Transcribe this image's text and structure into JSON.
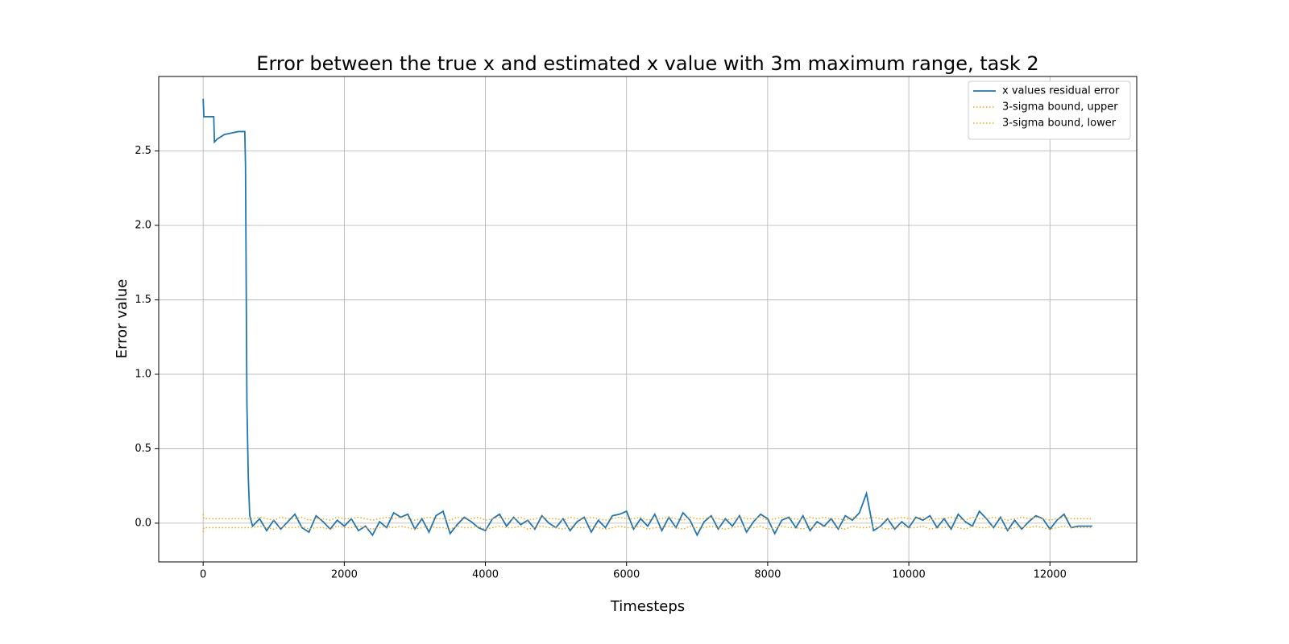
{
  "chart_data": {
    "type": "line",
    "title": "Error between the true x and estimated x value with 3m maximum range, task 2",
    "x_label": "Timesteps",
    "y_label": "Error value",
    "xlim": [
      -630,
      13230
    ],
    "ylim": [
      -0.26,
      3.0
    ],
    "xticks": [
      0,
      2000,
      4000,
      6000,
      8000,
      10000,
      12000
    ],
    "yticks": [
      {
        "value": 0,
        "label": "0.0"
      },
      {
        "value": 0.5,
        "label": "0.5"
      },
      {
        "value": 1,
        "label": "1.0"
      },
      {
        "value": 1.5,
        "label": "1.5"
      },
      {
        "value": 2,
        "label": "2.0"
      },
      {
        "value": 2.5,
        "label": "2.5"
      }
    ],
    "grid": true,
    "legend": "upper right",
    "x": [
      0,
      10,
      150,
      160,
      200,
      300,
      400,
      500,
      590,
      600,
      620,
      640,
      660,
      700,
      800,
      900,
      1000,
      1100,
      1200,
      1300,
      1400,
      1500,
      1600,
      1700,
      1800,
      1900,
      2000,
      2100,
      2200,
      2300,
      2400,
      2500,
      2600,
      2700,
      2800,
      2900,
      3000,
      3100,
      3200,
      3300,
      3400,
      3500,
      3600,
      3700,
      3800,
      3900,
      4000,
      4100,
      4200,
      4300,
      4400,
      4500,
      4600,
      4700,
      4800,
      4900,
      5000,
      5100,
      5200,
      5300,
      5400,
      5500,
      5600,
      5700,
      5800,
      5900,
      6000,
      6100,
      6200,
      6300,
      6400,
      6500,
      6600,
      6700,
      6800,
      6900,
      7000,
      7100,
      7200,
      7300,
      7400,
      7500,
      7600,
      7700,
      7800,
      7900,
      8000,
      8100,
      8200,
      8300,
      8400,
      8500,
      8600,
      8700,
      8800,
      8900,
      9000,
      9100,
      9200,
      9300,
      9400,
      9500,
      9600,
      9700,
      9800,
      9900,
      10000,
      10100,
      10200,
      10300,
      10400,
      10500,
      10600,
      10700,
      10800,
      10900,
      11000,
      11100,
      11200,
      11300,
      11400,
      11500,
      11600,
      11700,
      11800,
      11900,
      12000,
      12100,
      12200,
      12300,
      12400,
      12500,
      12600
    ],
    "series": [
      {
        "name": "x values residual error",
        "color": "#1f77b4",
        "style": "solid",
        "values": [
          2.85,
          2.73,
          2.73,
          2.56,
          2.58,
          2.61,
          2.62,
          2.63,
          2.63,
          2.4,
          0.8,
          0.3,
          0.05,
          -0.02,
          0.03,
          -0.05,
          0.02,
          -0.04,
          0.01,
          0.06,
          -0.03,
          -0.06,
          0.05,
          0.01,
          -0.04,
          0.02,
          -0.02,
          0.03,
          -0.05,
          -0.02,
          -0.08,
          0.01,
          -0.03,
          0.07,
          0.04,
          0.06,
          -0.04,
          0.03,
          -0.06,
          0.05,
          0.08,
          -0.07,
          -0.01,
          0.04,
          0.01,
          -0.03,
          -0.05,
          0.03,
          0.06,
          -0.02,
          0.04,
          -0.01,
          0.02,
          -0.04,
          0.05,
          0.0,
          -0.03,
          0.03,
          -0.05,
          0.01,
          0.04,
          -0.06,
          0.02,
          -0.03,
          0.05,
          0.06,
          0.08,
          -0.04,
          0.03,
          -0.02,
          0.06,
          -0.05,
          0.04,
          -0.03,
          0.07,
          0.02,
          -0.08,
          0.01,
          0.05,
          -0.04,
          0.03,
          -0.02,
          0.05,
          -0.06,
          0.01,
          0.06,
          0.03,
          -0.07,
          0.02,
          0.04,
          -0.03,
          0.05,
          -0.05,
          0.01,
          -0.02,
          0.03,
          -0.04,
          0.05,
          0.02,
          0.07,
          0.2,
          -0.05,
          -0.02,
          0.03,
          -0.04,
          0.01,
          -0.03,
          0.04,
          0.02,
          0.05,
          -0.03,
          0.03,
          -0.04,
          0.06,
          0.01,
          -0.02,
          0.08,
          0.03,
          -0.03,
          0.04,
          -0.05,
          0.02,
          -0.04,
          0.01,
          0.05,
          0.03,
          -0.04,
          0.02,
          0.06,
          -0.03,
          -0.02,
          -0.02,
          -0.02
        ]
      },
      {
        "name": "3-sigma bound, upper",
        "color": "#ffa500",
        "style": "dotted",
        "values": [
          0.06,
          0.03,
          0.03,
          0.03,
          0.03,
          0.03,
          0.03,
          0.03,
          0.03,
          0.03,
          0.03,
          0.03,
          0.03,
          0.03,
          0.04,
          0.03,
          0.02,
          0.04,
          0.03,
          0.03,
          0.04,
          0.02,
          0.03,
          0.03,
          0.02,
          0.04,
          0.03,
          0.03,
          0.04,
          0.03,
          0.02,
          0.03,
          0.04,
          0.03,
          0.04,
          0.03,
          0.02,
          0.03,
          0.04,
          0.03,
          0.03,
          0.02,
          0.04,
          0.03,
          0.03,
          0.04,
          0.02,
          0.03,
          0.04,
          0.03,
          0.03,
          0.04,
          0.02,
          0.03,
          0.04,
          0.03,
          0.03,
          0.02,
          0.04,
          0.03,
          0.03,
          0.04,
          0.03,
          0.02,
          0.03,
          0.04,
          0.03,
          0.03,
          0.04,
          0.02,
          0.03,
          0.03,
          0.04,
          0.03,
          0.02,
          0.04,
          0.03,
          0.03,
          0.04,
          0.03,
          0.02,
          0.03,
          0.04,
          0.03,
          0.03,
          0.04,
          0.02,
          0.03,
          0.04,
          0.03,
          0.03,
          0.02,
          0.04,
          0.03,
          0.04,
          0.03,
          0.03,
          0.02,
          0.04,
          0.03,
          0.03,
          0.04,
          0.03,
          0.02,
          0.03,
          0.04,
          0.03,
          0.03,
          0.04,
          0.02,
          0.03,
          0.03,
          0.04,
          0.03,
          0.02,
          0.04,
          0.03,
          0.03,
          0.04,
          0.03,
          0.02,
          0.03,
          0.04,
          0.03,
          0.04,
          0.03,
          0.02,
          0.03,
          0.04,
          0.03,
          0.03,
          0.03,
          0.03
        ]
      },
      {
        "name": "3-sigma bound, lower",
        "color": "#ffa500",
        "style": "dotted",
        "values": [
          -0.06,
          -0.03,
          -0.03,
          -0.03,
          -0.03,
          -0.03,
          -0.03,
          -0.03,
          -0.03,
          -0.03,
          -0.03,
          -0.03,
          -0.03,
          -0.03,
          -0.02,
          -0.03,
          -0.04,
          -0.02,
          -0.03,
          -0.03,
          -0.02,
          -0.04,
          -0.03,
          -0.03,
          -0.04,
          -0.02,
          -0.03,
          -0.03,
          -0.02,
          -0.03,
          -0.04,
          -0.03,
          -0.02,
          -0.03,
          -0.02,
          -0.03,
          -0.04,
          -0.03,
          -0.02,
          -0.03,
          -0.03,
          -0.04,
          -0.02,
          -0.03,
          -0.03,
          -0.02,
          -0.04,
          -0.03,
          -0.02,
          -0.03,
          -0.03,
          -0.02,
          -0.04,
          -0.03,
          -0.02,
          -0.03,
          -0.03,
          -0.04,
          -0.02,
          -0.03,
          -0.03,
          -0.02,
          -0.03,
          -0.04,
          -0.03,
          -0.02,
          -0.03,
          -0.03,
          -0.02,
          -0.04,
          -0.03,
          -0.03,
          -0.02,
          -0.03,
          -0.04,
          -0.02,
          -0.03,
          -0.03,
          -0.02,
          -0.03,
          -0.04,
          -0.03,
          -0.02,
          -0.03,
          -0.03,
          -0.02,
          -0.04,
          -0.03,
          -0.02,
          -0.03,
          -0.03,
          -0.04,
          -0.02,
          -0.03,
          -0.02,
          -0.03,
          -0.03,
          -0.04,
          -0.02,
          -0.03,
          -0.03,
          -0.02,
          -0.03,
          -0.04,
          -0.03,
          -0.02,
          -0.03,
          -0.03,
          -0.02,
          -0.04,
          -0.03,
          -0.03,
          -0.02,
          -0.03,
          -0.04,
          -0.02,
          -0.03,
          -0.03,
          -0.02,
          -0.03,
          -0.04,
          -0.03,
          -0.02,
          -0.03,
          -0.02,
          -0.03,
          -0.04,
          -0.03,
          -0.02,
          -0.03,
          -0.03,
          -0.03,
          -0.03
        ]
      }
    ]
  }
}
